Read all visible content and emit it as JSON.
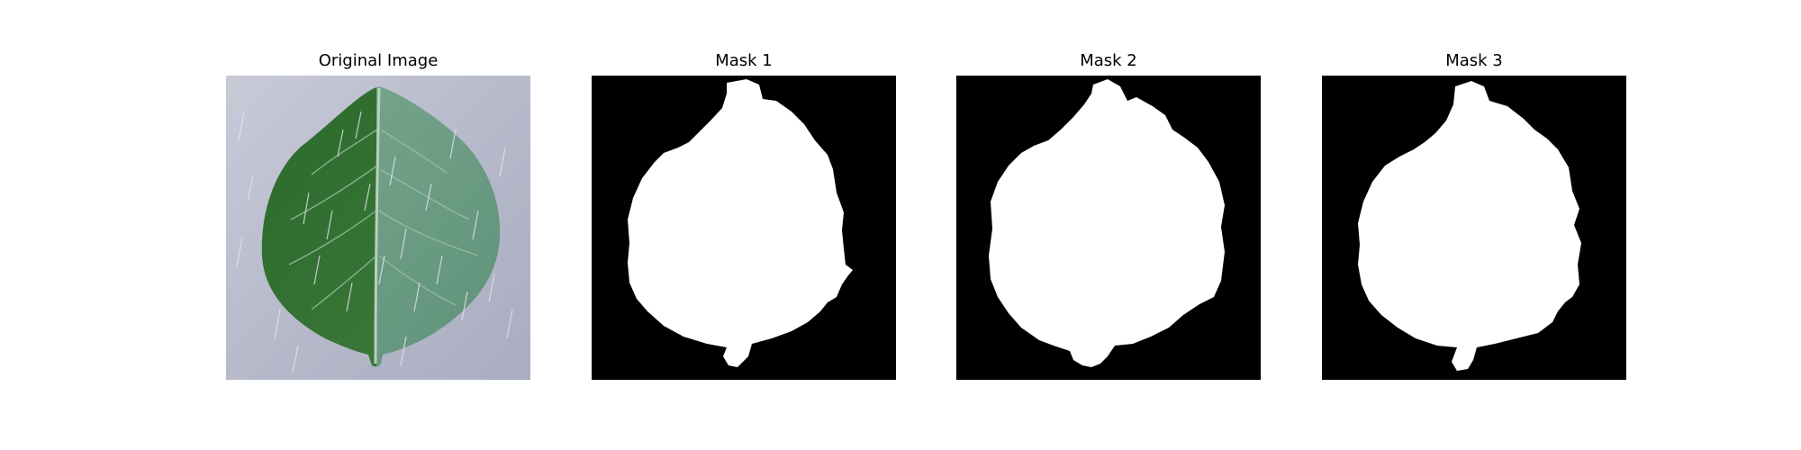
{
  "panels": [
    {
      "title": "Original Image",
      "kind": "photo"
    },
    {
      "title": "Mask 1",
      "kind": "mask"
    },
    {
      "title": "Mask 2",
      "kind": "mask"
    },
    {
      "title": "Mask 3",
      "kind": "mask"
    }
  ],
  "colors": {
    "mask_background": "#000000",
    "mask_foreground": "#ffffff",
    "photo_background": "#b9bccb",
    "leaf_dark": "#2f6b30",
    "leaf_light": "#6d9a82"
  }
}
